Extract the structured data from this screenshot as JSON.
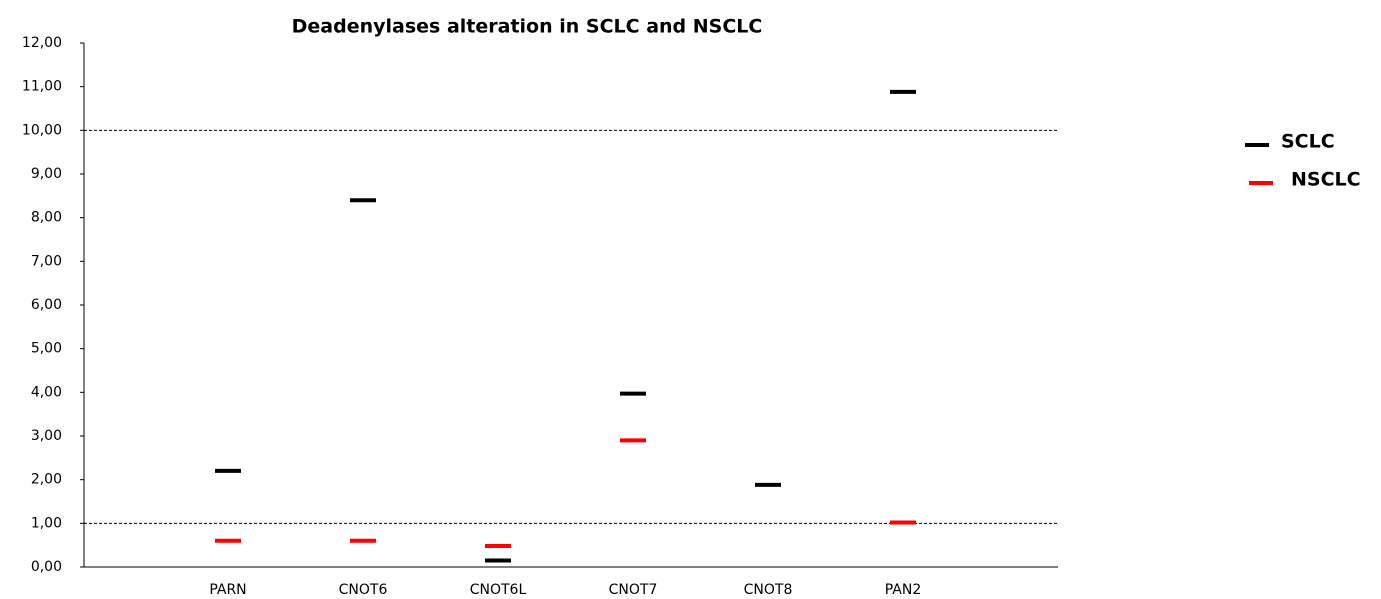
{
  "chart_data": {
    "type": "dash",
    "title": "Deadenylases alteration in SCLC and NSCLC",
    "categories": [
      "PARN",
      "CNOT6",
      "CNOT6L",
      "CNOT7",
      "CNOT8",
      "PAN2"
    ],
    "series": [
      {
        "name": "SCLC",
        "color": "#000000",
        "values": [
          2.2,
          8.4,
          0.15,
          3.97,
          1.88,
          10.88
        ]
      },
      {
        "name": "NSCLC",
        "color": "#ff0000",
        "values": [
          0.6,
          0.6,
          0.48,
          2.9,
          null,
          1.02
        ]
      }
    ],
    "ylim": [
      0,
      12
    ],
    "yticks": [
      {
        "value": 0,
        "label": "0,00"
      },
      {
        "value": 1,
        "label": "1,00"
      },
      {
        "value": 2,
        "label": "2,00"
      },
      {
        "value": 3,
        "label": "3,00"
      },
      {
        "value": 4,
        "label": "4,00"
      },
      {
        "value": 5,
        "label": "5,00"
      },
      {
        "value": 6,
        "label": "6,00"
      },
      {
        "value": 7,
        "label": "7,00"
      },
      {
        "value": 8,
        "label": "8,00"
      },
      {
        "value": 9,
        "label": "9,00"
      },
      {
        "value": 10,
        "label": "10,00"
      },
      {
        "value": 11,
        "label": "11,00"
      },
      {
        "value": 12,
        "label": "12,00"
      }
    ],
    "reference_lines": [
      1,
      10
    ],
    "legend": "right"
  }
}
